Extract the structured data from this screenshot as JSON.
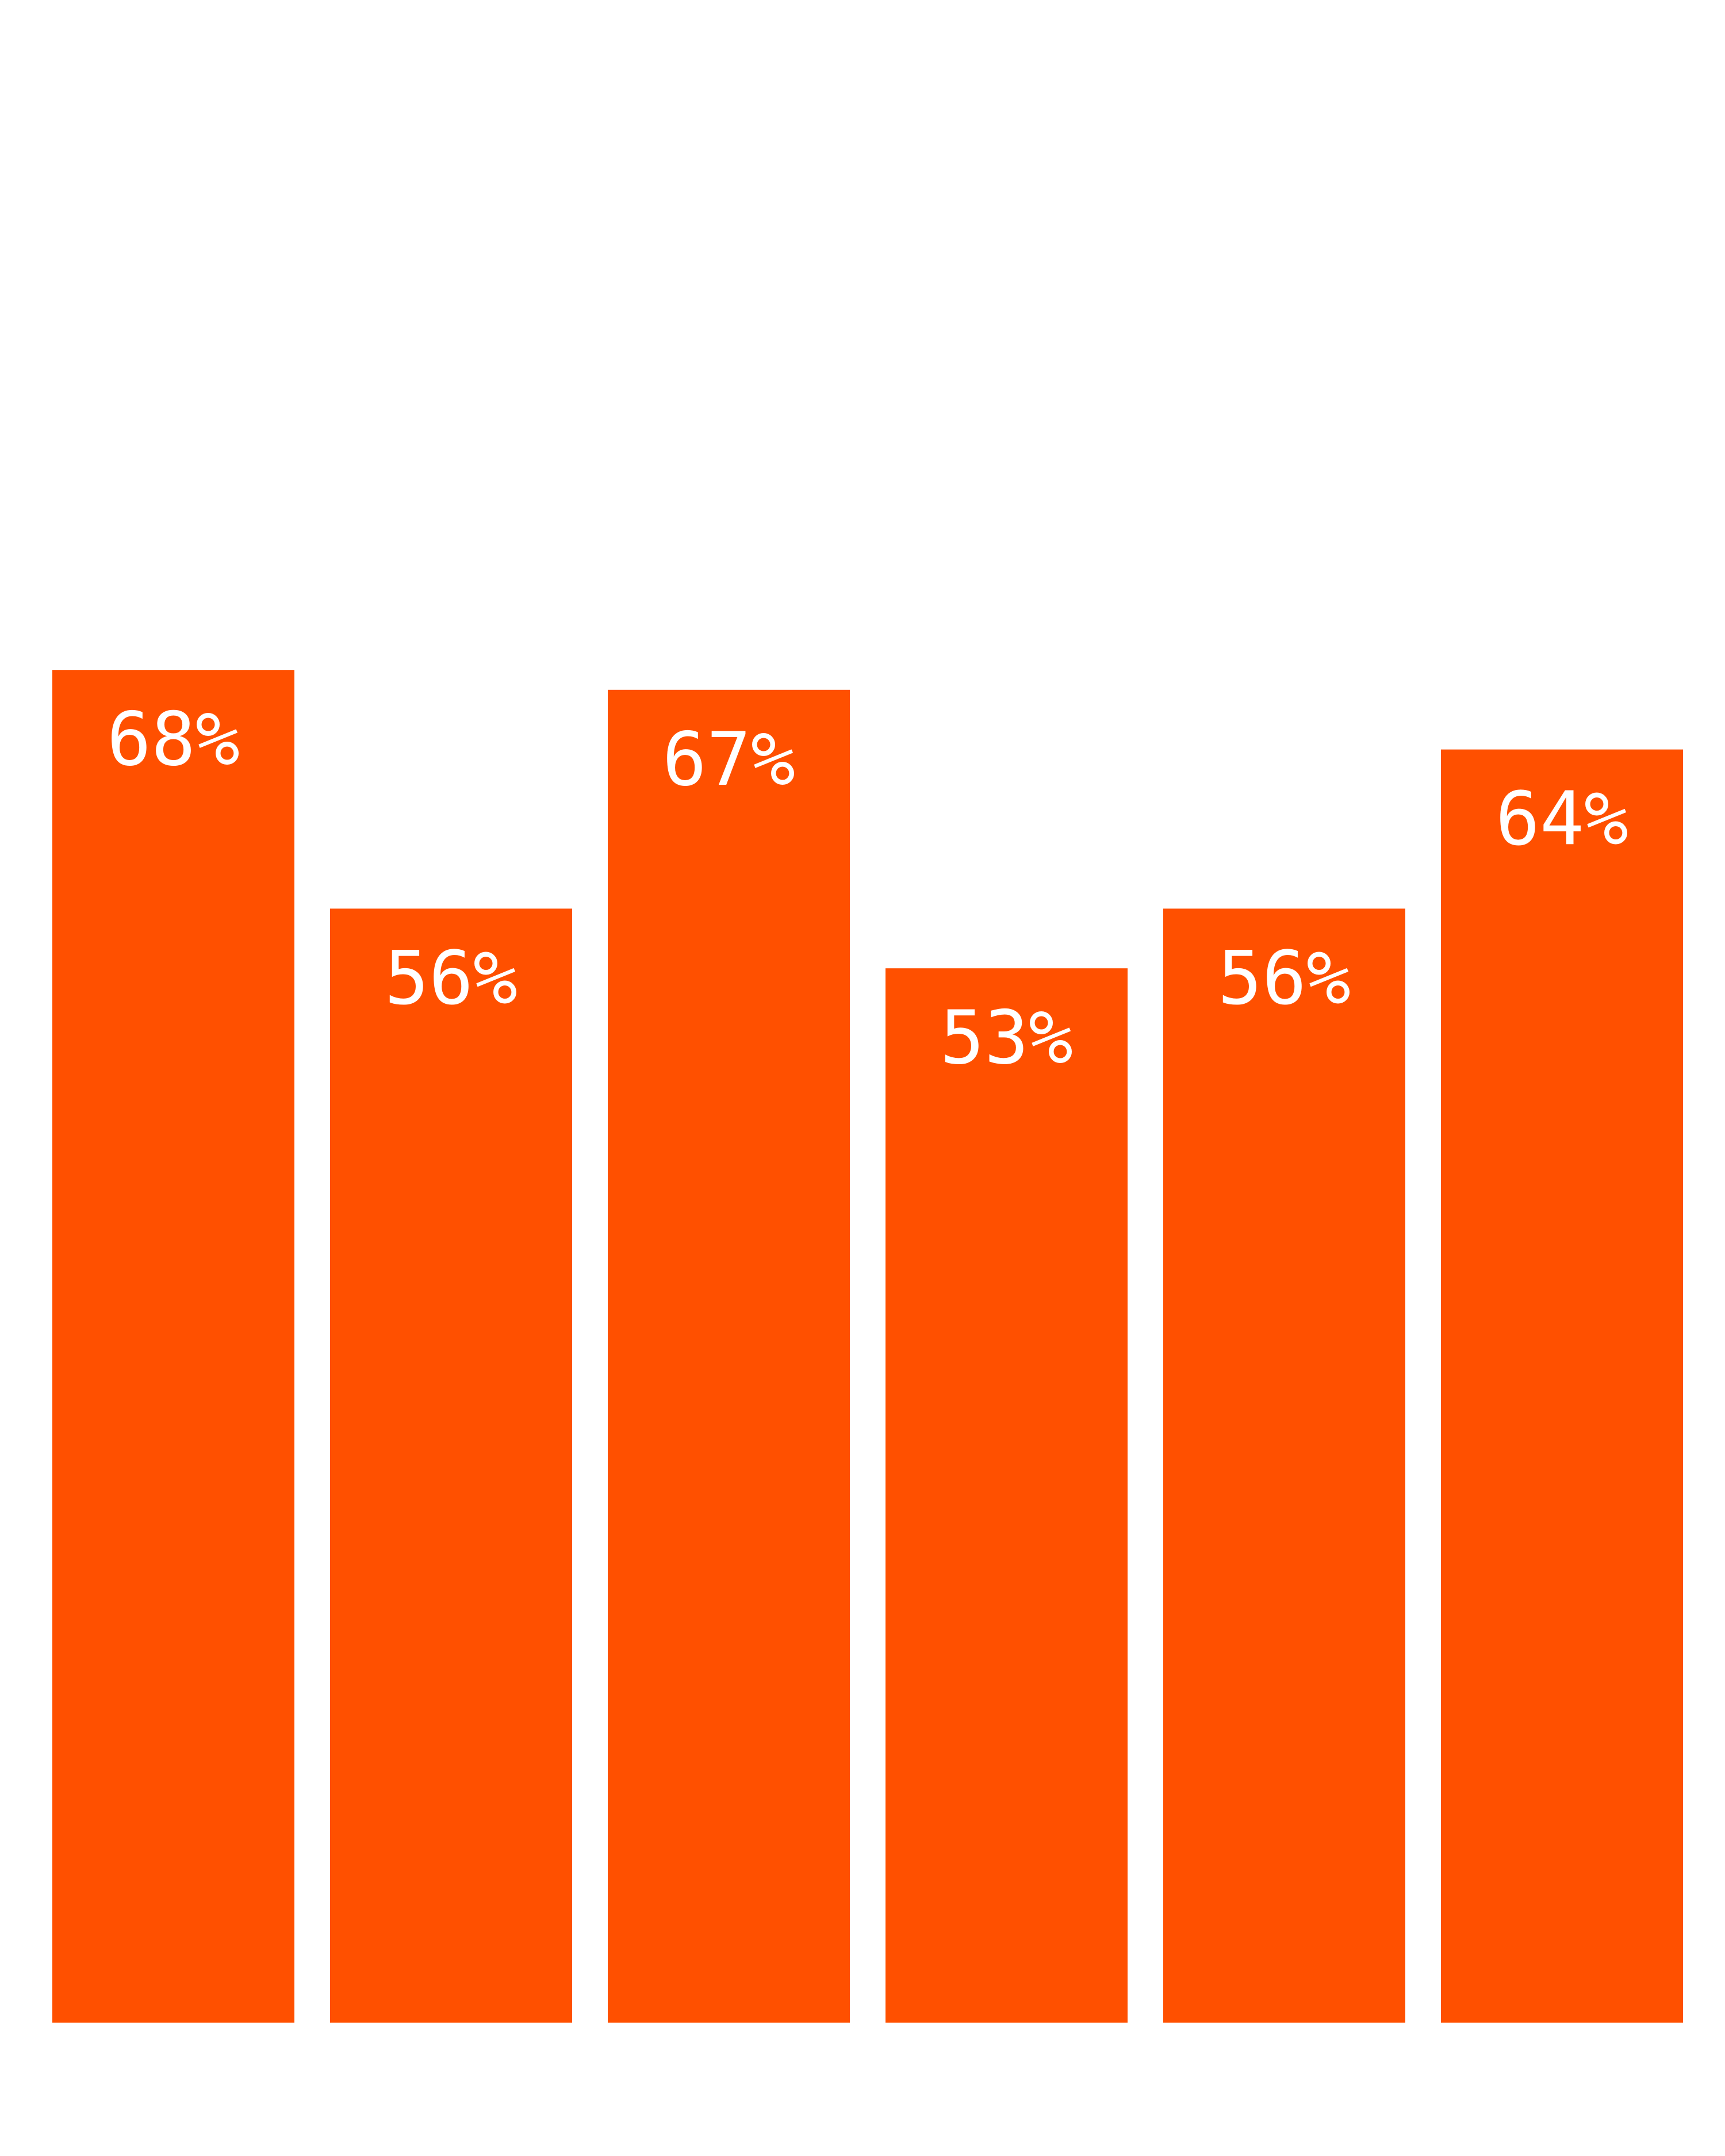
{
  "chart_data": {
    "type": "bar",
    "values": [
      68,
      56,
      67,
      53,
      56,
      64
    ],
    "data_labels": [
      "68%",
      "56%",
      "67%",
      "53%",
      "56%",
      "64%"
    ],
    "ylim": [
      0,
      100
    ],
    "grid": false,
    "colors": {
      "bar": "#FF5000",
      "label": "#FFFFFF",
      "background": "#FFFFFF"
    }
  }
}
